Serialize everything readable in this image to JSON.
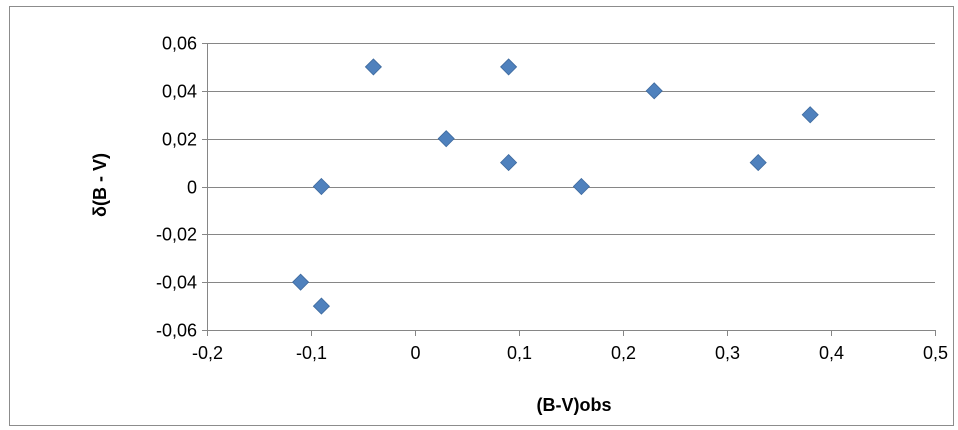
{
  "chart_data": {
    "type": "scatter",
    "xlabel": "(B-V)obs",
    "ylabel": "δ(B - V)",
    "xlim": [
      -0.2,
      0.5
    ],
    "ylim": [
      -0.06,
      0.06
    ],
    "x_ticks": [
      -0.2,
      -0.1,
      0,
      0.1,
      0.2,
      0.3,
      0.4,
      0.5
    ],
    "y_ticks": [
      -0.06,
      -0.04,
      -0.02,
      0,
      0.02,
      0.04,
      0.06
    ],
    "x_tick_labels": [
      "-0,2",
      "-0,1",
      "0",
      "0,1",
      "0,2",
      "0,3",
      "0,4",
      "0,5"
    ],
    "y_tick_labels": [
      "-0,06",
      "-0,04",
      "-0,02",
      "0",
      "0,02",
      "0,04",
      "0,06"
    ],
    "grid": "horizontal",
    "legend": "none",
    "marker": "diamond",
    "marker_color": "#4f81bd",
    "gridline_color": "#868686",
    "points": [
      {
        "x": -0.11,
        "y": -0.04
      },
      {
        "x": -0.09,
        "y": -0.05
      },
      {
        "x": -0.09,
        "y": 0.0
      },
      {
        "x": -0.04,
        "y": 0.05
      },
      {
        "x": 0.03,
        "y": 0.02
      },
      {
        "x": 0.09,
        "y": 0.05
      },
      {
        "x": 0.09,
        "y": 0.01
      },
      {
        "x": 0.16,
        "y": 0.0
      },
      {
        "x": 0.23,
        "y": 0.04
      },
      {
        "x": 0.33,
        "y": 0.01
      },
      {
        "x": 0.38,
        "y": 0.03
      }
    ]
  }
}
